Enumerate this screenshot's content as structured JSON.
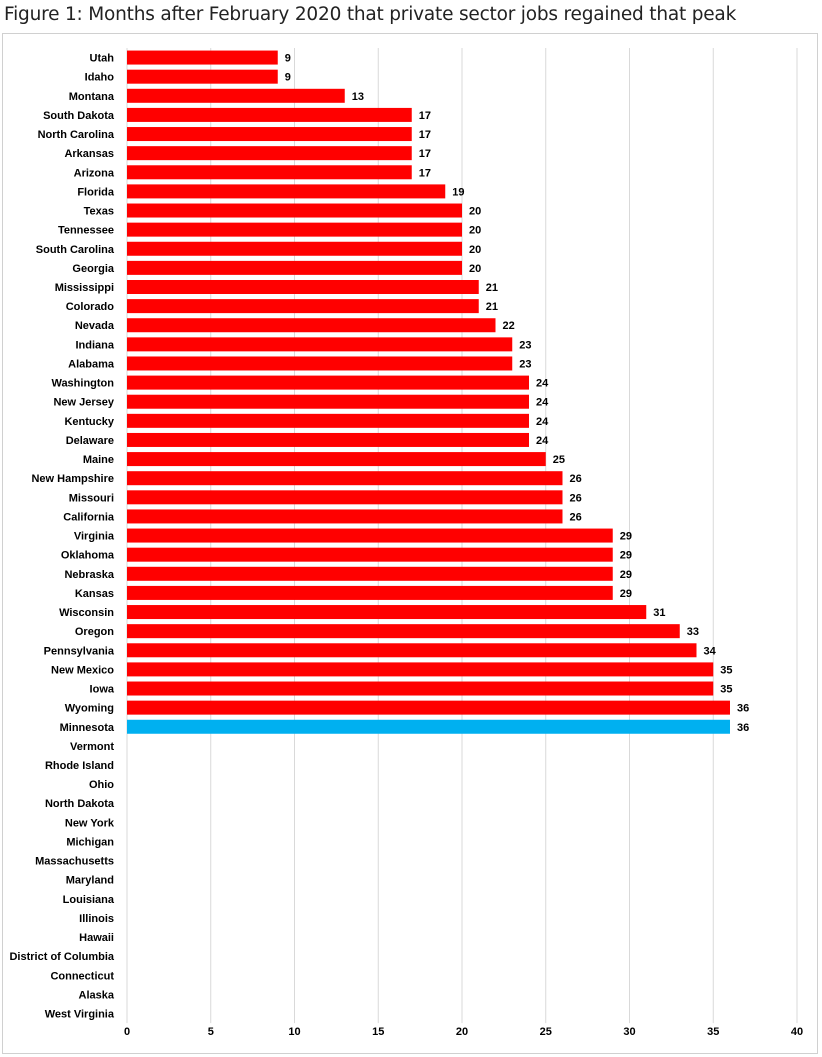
{
  "figure_title": "Figure 1: Months after February 2020 that private sector jobs regained that peak",
  "colors": {
    "bar": "#ff0000",
    "highlight": "#00b0f0",
    "grid": "#d9d9d9"
  },
  "chart_data": {
    "type": "bar",
    "orientation": "horizontal",
    "title": "",
    "xlabel": "",
    "ylabel": "",
    "xlim": [
      0,
      40
    ],
    "xticks": [
      0,
      5,
      10,
      15,
      20,
      25,
      30,
      35,
      40
    ],
    "grid": true,
    "highlight_category": "Minnesota",
    "categories": [
      "Utah",
      "Idaho",
      "Montana",
      "South Dakota",
      "North Carolina",
      "Arkansas",
      "Arizona",
      "Florida",
      "Texas",
      "Tennessee",
      "South Carolina",
      "Georgia",
      "Mississippi",
      "Colorado",
      "Nevada",
      "Indiana",
      "Alabama",
      "Washington",
      "New Jersey",
      "Kentucky",
      "Delaware",
      "Maine",
      "New Hampshire",
      "Missouri",
      "California",
      "Virginia",
      "Oklahoma",
      "Nebraska",
      "Kansas",
      "Wisconsin",
      "Oregon",
      "Pennsylvania",
      "New Mexico",
      "Iowa",
      "Wyoming",
      "Minnesota",
      "Vermont",
      "Rhode Island",
      "Ohio",
      "North Dakota",
      "New York",
      "Michigan",
      "Massachusetts",
      "Maryland",
      "Louisiana",
      "Illinois",
      "Hawaii",
      "District of Columbia",
      "Connecticut",
      "Alaska",
      "West Virginia"
    ],
    "values": [
      9,
      9,
      13,
      17,
      17,
      17,
      17,
      19,
      20,
      20,
      20,
      20,
      21,
      21,
      22,
      23,
      23,
      24,
      24,
      24,
      24,
      25,
      26,
      26,
      26,
      29,
      29,
      29,
      29,
      31,
      33,
      34,
      35,
      35,
      36,
      36,
      null,
      null,
      null,
      null,
      null,
      null,
      null,
      null,
      null,
      null,
      null,
      null,
      null,
      null,
      null
    ]
  }
}
